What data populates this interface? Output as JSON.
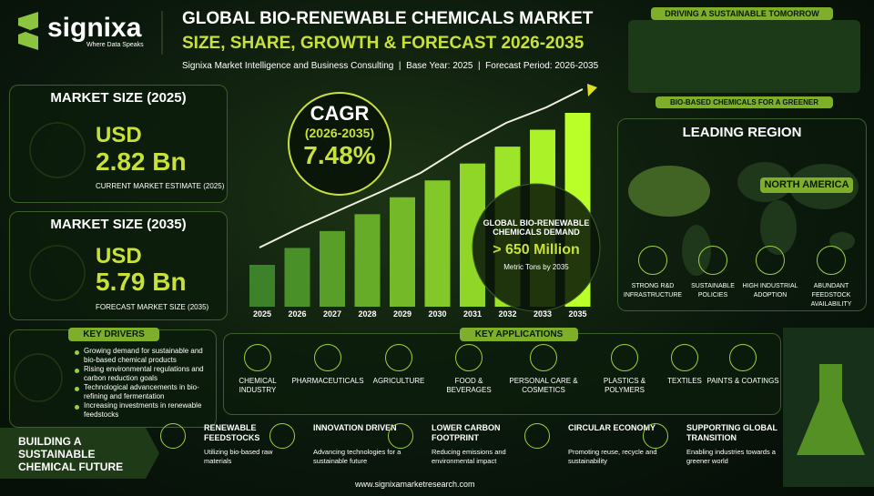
{
  "header": {
    "brand": "signixa",
    "tagline": "Where Data Speaks",
    "title_line1": "GLOBAL BIO-RENEWABLE CHEMICALS MARKET",
    "title_line2": "SIZE, SHARE, GROWTH & FORECAST 2026-2035",
    "subtitle": "Signixa Market Intelligence and Business Consulting  |  Base Year: 2025  |  Forecast Period: 2026-2035"
  },
  "market_2025": {
    "heading": "MARKET SIZE (2025)",
    "currency": "USD",
    "value": "2.82 Bn",
    "caption": "CURRENT MARKET ESTIMATE (2025)"
  },
  "market_2035": {
    "heading": "MARKET SIZE (2035)",
    "currency": "USD",
    "value": "5.79 Bn",
    "caption": "FORECAST MARKET SIZE (2035)"
  },
  "cagr": {
    "label": "CAGR",
    "period": "(2026-2035)",
    "value": "7.48%"
  },
  "demand": {
    "title": "GLOBAL BIO-RENEWABLE CHEMICALS DEMAND",
    "value": "> 650 Million",
    "unit": "Metric Tons by 2035"
  },
  "years": [
    "2025",
    "2026",
    "2027",
    "2028",
    "2029",
    "2030",
    "2031",
    "2032",
    "2033",
    "2035"
  ],
  "hero": {
    "banner": "DRIVING A SUSTAINABLE TOMORROW",
    "caption": "BIO-BASED CHEMICALS FOR A GREENER FUTURE"
  },
  "region": {
    "heading": "LEADING REGION",
    "name": "NORTH AMERICA",
    "factors": [
      "STRONG R&D INFRASTRUCTURE",
      "SUSTAINABLE POLICIES",
      "HIGH INDUSTRIAL ADOPTION",
      "ABUNDANT FEEDSTOCK AVAILABILITY"
    ]
  },
  "drivers": {
    "heading": "KEY DRIVERS",
    "items": [
      "Growing demand for sustainable and bio-based chemical products",
      "Rising environmental regulations and carbon reduction goals",
      "Technological advancements in bio-refining and fermentation",
      "Increasing investments in renewable feedstocks"
    ]
  },
  "applications": {
    "heading": "KEY APPLICATIONS",
    "items": [
      "CHEMICAL INDUSTRY",
      "PHARMACEUTICALS",
      "AGRICULTURE",
      "FOOD & BEVERAGES",
      "PERSONAL CARE & COSMETICS",
      "PLASTICS & POLYMERS",
      "TEXTILES",
      "PAINTS & COATINGS"
    ]
  },
  "pillars": [
    {
      "title": "RENEWABLE FEEDSTOCKS",
      "text": "Utilizing bio-based raw materials"
    },
    {
      "title": "INNOVATION DRIVEN",
      "text": "Advancing technologies for a sustainable future"
    },
    {
      "title": "LOWER CARBON FOOTPRINT",
      "text": "Reducing emissions and environmental impact"
    },
    {
      "title": "CIRCULAR ECONOMY",
      "text": "Promoting reuse, recycle and sustainability"
    },
    {
      "title": "SUPPORTING GLOBAL TRANSITION",
      "text": "Enabling industries towards a greener world"
    }
  ],
  "footer": {
    "banner": "BUILDING A SUSTAINABLE CHEMICAL FUTURE",
    "url": "www.signixamarketresearch.com"
  }
}
